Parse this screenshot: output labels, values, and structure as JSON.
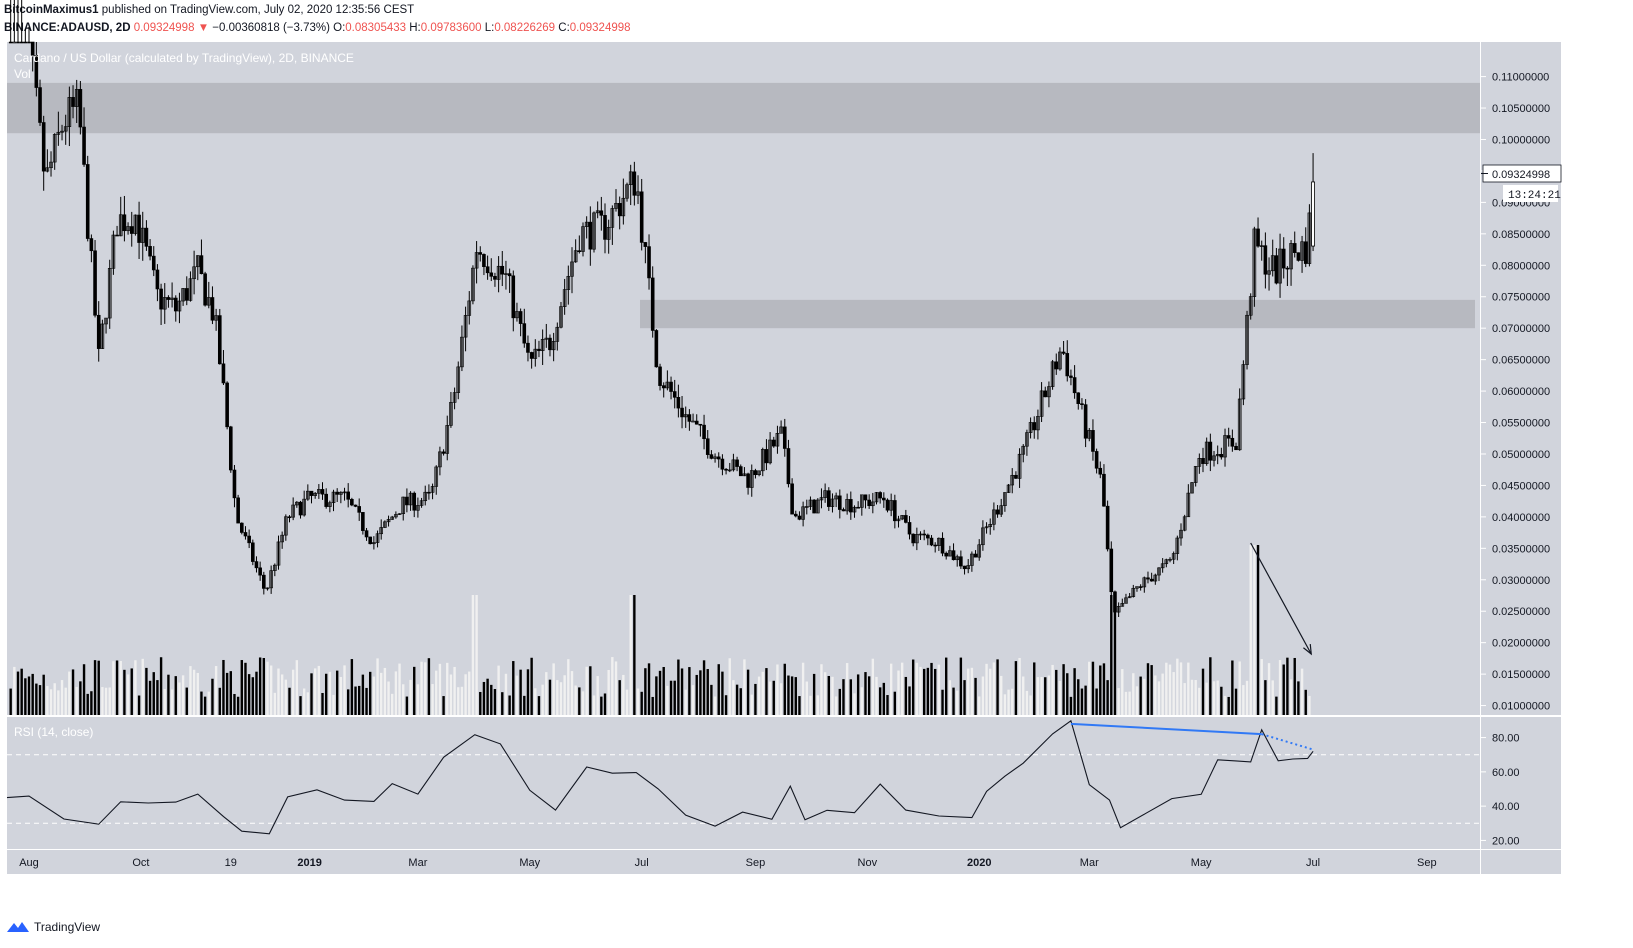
{
  "header": {
    "author": "BitcoinMaximus1",
    "published": "published on TradingView.com, July 02, 2020 12:35:56 CEST",
    "symbol": "BINANCE:ADAUSD, 2D",
    "last": "0.09324998",
    "change_arrow": "▼",
    "change": "−0.00360818 (−3.73%)",
    "o_label": "O:",
    "o": "0.08305433",
    "h_label": "H:",
    "h": "0.09783600",
    "l_label": "L:",
    "l": "0.08226269",
    "c_label": "C:",
    "c": "0.09324998"
  },
  "pane": {
    "title": "Cardano / US Dollar (calculated by TradingView), 2D, BINANCE",
    "vol_label": "Vol",
    "rsi_label": "RSI (14, close)",
    "price_tag": "0.09324998",
    "countdown": "13:24:21"
  },
  "footer": {
    "brand": "TradingView",
    "logo_icon": "tradingview-logo-icon"
  },
  "colors": {
    "background": "#d1d4dc",
    "candle": "#000000",
    "zone": "#b7b9c0",
    "trendline": "#3179f5",
    "vol_up": "#f0f0f0",
    "vol_down": "#000000"
  },
  "chart_data": [
    {
      "type": "candlestick",
      "title": "Cardano / US Dollar (calculated by TradingView), 2D, BINANCE",
      "x_ticks": [
        "Aug",
        "Oct",
        "19",
        "2019",
        "Mar",
        "May",
        "Jul",
        "Sep",
        "Nov",
        "2020",
        "Mar",
        "May",
        "Jul",
        "Sep"
      ],
      "y_ticks": [
        "0.11000000",
        "0.10500000",
        "0.10000000",
        "0.09500000",
        "0.09000000",
        "0.08500000",
        "0.08000000",
        "0.07500000",
        "0.07000000",
        "0.06500000",
        "0.06000000",
        "0.05500000",
        "0.05000000",
        "0.04500000",
        "0.04000000",
        "0.03500000",
        "0.03000000",
        "0.02500000",
        "0.02000000",
        "0.01500000",
        "0.01000000"
      ],
      "ylim": [
        0.0085,
        0.1155
      ],
      "resistance_zones": [
        [
          0.101,
          0.109
        ],
        [
          0.07,
          0.0745
        ]
      ],
      "close_path": [
        [
          "2018-07-20",
          0.138
        ],
        [
          "2018-08-01",
          0.115
        ],
        [
          "2018-08-10",
          0.093
        ],
        [
          "2018-08-20",
          0.103
        ],
        [
          "2018-08-28",
          0.105
        ],
        [
          "2018-09-08",
          0.065
        ],
        [
          "2018-09-18",
          0.087
        ],
        [
          "2018-09-28",
          0.088
        ],
        [
          "2018-10-10",
          0.075
        ],
        [
          "2018-10-20",
          0.073
        ],
        [
          "2018-11-01",
          0.079
        ],
        [
          "2018-11-10",
          0.072
        ],
        [
          "2018-11-15",
          0.06
        ],
        [
          "2018-11-22",
          0.04
        ],
        [
          "2018-12-08",
          0.028
        ],
        [
          "2018-12-20",
          0.04
        ],
        [
          "2019-01-01",
          0.043
        ],
        [
          "2019-01-20",
          0.043
        ],
        [
          "2019-02-05",
          0.036
        ],
        [
          "2019-02-20",
          0.042
        ],
        [
          "2019-03-08",
          0.043
        ],
        [
          "2019-03-20",
          0.058
        ],
        [
          "2019-04-02",
          0.083
        ],
        [
          "2019-04-18",
          0.078
        ],
        [
          "2019-05-01",
          0.064
        ],
        [
          "2019-05-12",
          0.068
        ],
        [
          "2019-05-28",
          0.085
        ],
        [
          "2019-06-10",
          0.086
        ],
        [
          "2019-06-28",
          0.094
        ],
        [
          "2019-07-10",
          0.063
        ],
        [
          "2019-07-25",
          0.056
        ],
        [
          "2019-08-10",
          0.05
        ],
        [
          "2019-08-28",
          0.046
        ],
        [
          "2019-09-15",
          0.053
        ],
        [
          "2019-09-22",
          0.04
        ],
        [
          "2019-10-10",
          0.043
        ],
        [
          "2019-10-25",
          0.042
        ],
        [
          "2019-11-10",
          0.043
        ],
        [
          "2019-11-25",
          0.037
        ],
        [
          "2019-12-10",
          0.036
        ],
        [
          "2019-12-25",
          0.032
        ],
        [
          "2020-01-10",
          0.041
        ],
        [
          "2020-01-25",
          0.05
        ],
        [
          "2020-02-15",
          0.067
        ],
        [
          "2020-03-01",
          0.052
        ],
        [
          "2020-03-08",
          0.045
        ],
        [
          "2020-03-14",
          0.024
        ],
        [
          "2020-03-28",
          0.029
        ],
        [
          "2020-04-15",
          0.033
        ],
        [
          "2020-04-30",
          0.05
        ],
        [
          "2020-05-20",
          0.052
        ],
        [
          "2020-05-30",
          0.083
        ],
        [
          "2020-06-10",
          0.079
        ],
        [
          "2020-06-20",
          0.082
        ],
        [
          "2020-06-28",
          0.083
        ],
        [
          "2020-07-01",
          0.09325
        ]
      ],
      "last_candle": {
        "open": 0.08305433,
        "high": 0.097836,
        "low": 0.08226269,
        "close": 0.09324998
      }
    },
    {
      "type": "bar",
      "title": "Vol",
      "note": "volume histogram overlaid at bottom of price pane; no axis",
      "notable_spikes": [
        [
          "2019-04-01",
          "high"
        ],
        [
          "2019-06-26",
          "high"
        ],
        [
          "2020-03-14",
          "high"
        ],
        [
          "2020-05-30",
          "highest"
        ]
      ]
    },
    {
      "type": "line",
      "title": "RSI (14, close)",
      "y_ticks": [
        "80.00",
        "60.00",
        "40.00",
        "20.00"
      ],
      "ylim": [
        15,
        92
      ],
      "bands": [
        30,
        70
      ],
      "points": [
        [
          "2018-07-20",
          45
        ],
        [
          "2018-08-01",
          44
        ],
        [
          "2018-08-20",
          35
        ],
        [
          "2018-09-08",
          28
        ],
        [
          "2018-09-20",
          42
        ],
        [
          "2018-10-05",
          44
        ],
        [
          "2018-10-20",
          40
        ],
        [
          "2018-11-01",
          48
        ],
        [
          "2018-11-15",
          35
        ],
        [
          "2018-11-25",
          23
        ],
        [
          "2018-12-10",
          26
        ],
        [
          "2018-12-20",
          45
        ],
        [
          "2019-01-05",
          48
        ],
        [
          "2019-01-20",
          46
        ],
        [
          "2019-02-05",
          41
        ],
        [
          "2019-02-15",
          53
        ],
        [
          "2019-03-01",
          49
        ],
        [
          "2019-03-15",
          66
        ],
        [
          "2019-04-01",
          83
        ],
        [
          "2019-04-15",
          77
        ],
        [
          "2019-05-01",
          47
        ],
        [
          "2019-05-15",
          40
        ],
        [
          "2019-06-01",
          62
        ],
        [
          "2019-06-15",
          58
        ],
        [
          "2019-06-28",
          62
        ],
        [
          "2019-07-10",
          48
        ],
        [
          "2019-07-25",
          35
        ],
        [
          "2019-08-10",
          30
        ],
        [
          "2019-08-25",
          34
        ],
        [
          "2019-09-10",
          34
        ],
        [
          "2019-09-20",
          52
        ],
        [
          "2019-09-28",
          30
        ],
        [
          "2019-10-10",
          40
        ],
        [
          "2019-10-25",
          35
        ],
        [
          "2019-11-08",
          52
        ],
        [
          "2019-11-22",
          40
        ],
        [
          "2019-12-10",
          32
        ],
        [
          "2019-12-28",
          34
        ],
        [
          "2020-01-05",
          50
        ],
        [
          "2020-01-15",
          55
        ],
        [
          "2020-01-25",
          67
        ],
        [
          "2020-02-10",
          82
        ],
        [
          "2020-02-20",
          88
        ],
        [
          "2020-03-01",
          55
        ],
        [
          "2020-03-12",
          42
        ],
        [
          "2020-03-18",
          27
        ],
        [
          "2020-04-01",
          38
        ],
        [
          "2020-04-15",
          42
        ],
        [
          "2020-05-01",
          48
        ],
        [
          "2020-05-10",
          68
        ],
        [
          "2020-05-20",
          64
        ],
        [
          "2020-05-28",
          68
        ],
        [
          "2020-06-03",
          84
        ],
        [
          "2020-06-12",
          65
        ],
        [
          "2020-06-20",
          70
        ],
        [
          "2020-06-28",
          66
        ],
        [
          "2020-07-01",
          72
        ]
      ],
      "divergence_line": [
        [
          "2020-02-20",
          88
        ],
        [
          "2020-06-03",
          82
        ]
      ],
      "divergence_projection": [
        [
          "2020-06-03",
          82
        ],
        [
          "2020-07-01",
          73
        ]
      ]
    }
  ]
}
